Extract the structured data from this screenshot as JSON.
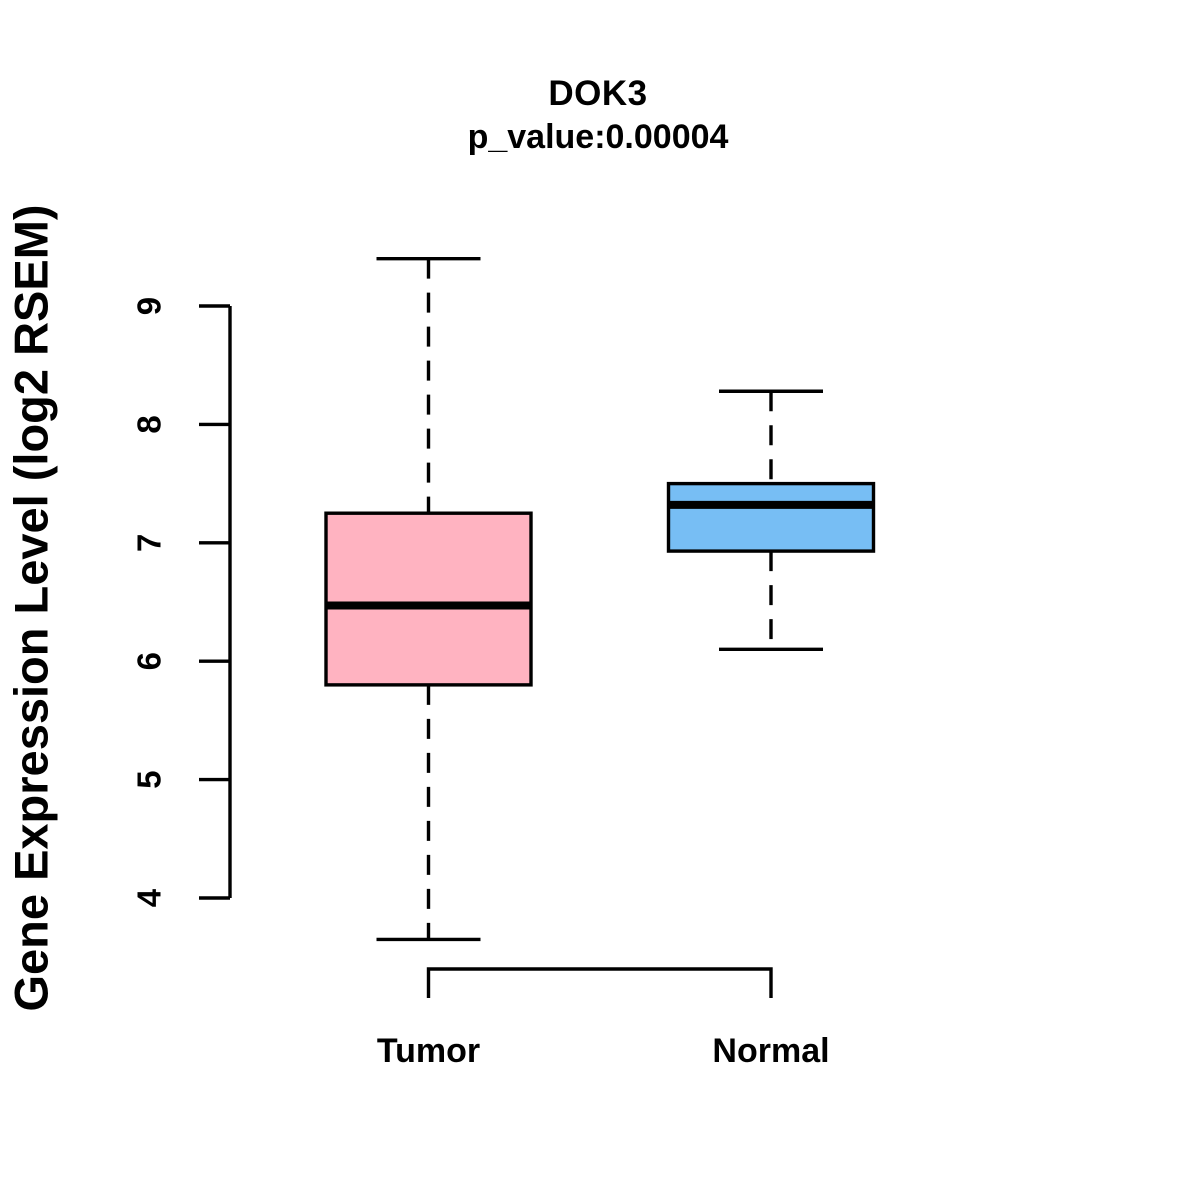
{
  "chart_data": {
    "type": "boxplot",
    "title": "DOK3",
    "subtitle": "p_value:0.00004",
    "p_value": 4e-05,
    "ylabel": "Gene Expression Level (log2 RSEM)",
    "xlabel": "",
    "categories": [
      "Tumor",
      "Normal"
    ],
    "series": [
      {
        "name": "Tumor",
        "min": 3.65,
        "q1": 5.8,
        "median": 6.47,
        "q3": 7.25,
        "max": 9.4,
        "fill_color": "#FFB3C1"
      },
      {
        "name": "Normal",
        "min": 6.1,
        "q1": 6.93,
        "median": 7.32,
        "q3": 7.5,
        "max": 8.28,
        "fill_color": "#77BEF4"
      }
    ],
    "yticks": [
      4,
      5,
      6,
      7,
      8,
      9
    ],
    "ylim": [
      3.6,
      9.45
    ],
    "grid": false,
    "legend_position": "none",
    "stroke_color": "#000000",
    "background_color": "#ffffff"
  }
}
